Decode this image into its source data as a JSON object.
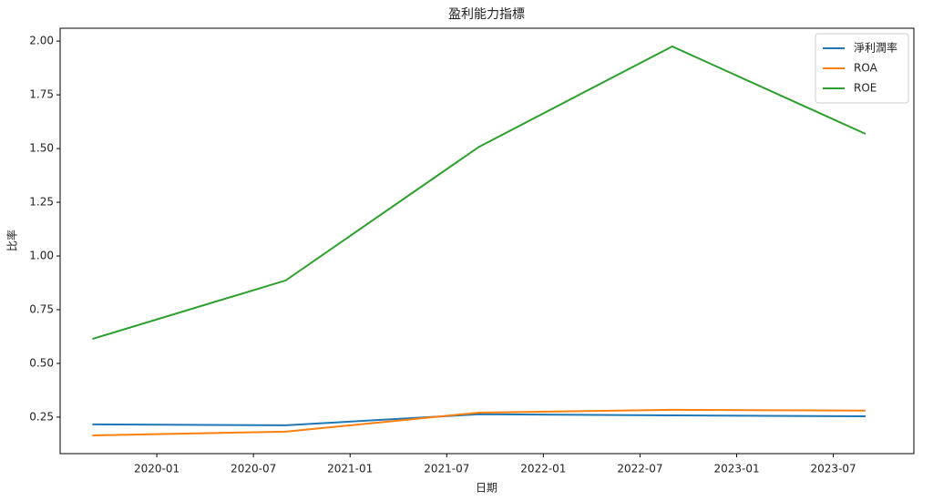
{
  "chart_data": {
    "type": "line",
    "title": "盈利能力指標",
    "x_label": "日期",
    "y_label": "比率",
    "x": [
      "2019-09",
      "2020-09",
      "2021-09",
      "2022-09",
      "2023-09"
    ],
    "series": [
      {
        "name": "淨利潤率",
        "color": "#1f77b4",
        "values": [
          0.216,
          0.212,
          0.263,
          0.258,
          0.254
        ]
      },
      {
        "name": "ROA",
        "color": "#ff7f0e",
        "values": [
          0.165,
          0.182,
          0.271,
          0.284,
          0.28
        ]
      },
      {
        "name": "ROE",
        "color": "#2ca02c",
        "values": [
          0.614,
          0.886,
          1.508,
          1.975,
          1.568
        ]
      }
    ],
    "xlim": [
      "2019-07",
      "2023-12"
    ],
    "xticks": [
      "2020-01",
      "2020-07",
      "2021-01",
      "2021-07",
      "2022-01",
      "2022-07",
      "2023-01",
      "2023-07"
    ],
    "ylim": [
      0.08,
      2.06
    ],
    "yticks": [
      0.25,
      {
        "value": 0.5,
        "label": "0.50"
      },
      0.75,
      {
        "value": 1,
        "label": "1.00"
      },
      1.25,
      {
        "value": 1.5,
        "label": "1.50"
      },
      1.75,
      {
        "value": 2,
        "label": "2.00"
      }
    ],
    "legend": "upper right",
    "grid": false
  }
}
